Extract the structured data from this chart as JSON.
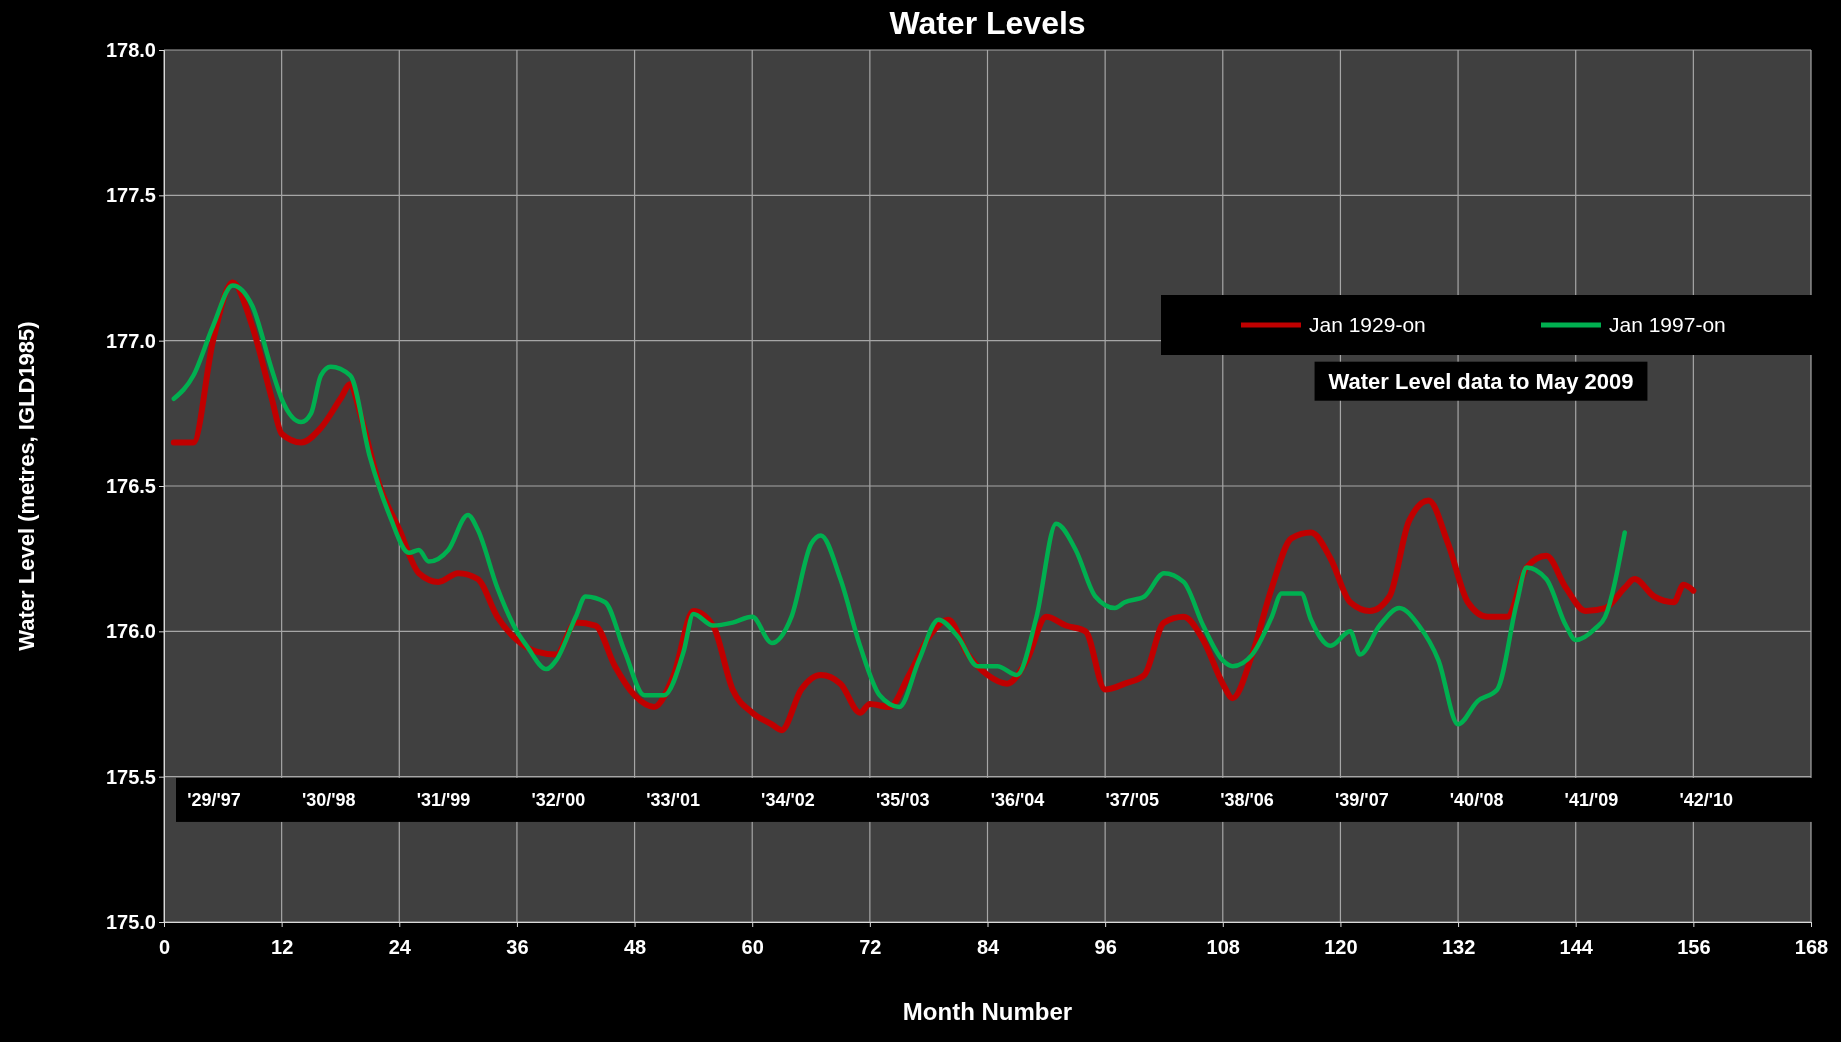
{
  "chart_data": {
    "type": "line",
    "title": "Water Levels",
    "xlabel": "Month Number",
    "ylabel": "Water Level (metres, IGLD1985)",
    "xlim": [
      0,
      168
    ],
    "xticks": [
      0,
      12,
      24,
      36,
      48,
      60,
      72,
      84,
      96,
      108,
      120,
      132,
      144,
      156,
      168
    ],
    "ylim": [
      175,
      178
    ],
    "yticks": [
      {
        "value": 175,
        "label": "175.0"
      },
      {
        "value": 175.5,
        "label": "175.5"
      },
      {
        "value": 176,
        "label": "176.0"
      },
      {
        "value": 176.5,
        "label": "176.5"
      },
      {
        "value": 177,
        "label": "177.0"
      },
      {
        "value": 177.5,
        "label": "177.5"
      },
      {
        "value": 178,
        "label": "178.0"
      }
    ],
    "grid": true,
    "legend": "top right",
    "line_style": "solid",
    "marker": "none",
    "series": [
      {
        "name": "Jan 1929-on",
        "color": "#c00000",
        "x": [
          1,
          3,
          5,
          7,
          9,
          11,
          12,
          14,
          16,
          18,
          19,
          20,
          22,
          24,
          26,
          28,
          30,
          32,
          34,
          36,
          38,
          40,
          42,
          44,
          46,
          48,
          50,
          52,
          54,
          56,
          58,
          60,
          62,
          63,
          65,
          67,
          69,
          71,
          72,
          74,
          76,
          78,
          80,
          82,
          84,
          86,
          88,
          90,
          92,
          94,
          96,
          98,
          100,
          102,
          104,
          106,
          108,
          109,
          111,
          113,
          115,
          117,
          119,
          121,
          123,
          125,
          127,
          129,
          131,
          133,
          135,
          137,
          139,
          141,
          143,
          145,
          147,
          149,
          150,
          152,
          154,
          155,
          156
        ],
        "values": [
          176.65,
          176.65,
          177.0,
          177.2,
          177.05,
          176.8,
          176.68,
          176.65,
          176.7,
          176.8,
          176.85,
          176.75,
          176.5,
          176.35,
          176.2,
          176.17,
          176.2,
          176.18,
          176.05,
          175.97,
          175.93,
          175.92,
          176.03,
          176.02,
          175.88,
          175.78,
          175.74,
          175.85,
          176.07,
          176.02,
          175.8,
          175.72,
          175.68,
          175.66,
          175.8,
          175.85,
          175.82,
          175.72,
          175.75,
          175.74,
          175.85,
          175.98,
          176.04,
          175.92,
          175.85,
          175.82,
          175.9,
          176.05,
          176.02,
          176.0,
          175.8,
          175.82,
          175.85,
          176.03,
          176.05,
          175.97,
          175.82,
          175.77,
          175.92,
          176.15,
          176.32,
          176.34,
          176.25,
          176.1,
          176.07,
          176.12,
          176.38,
          176.45,
          176.3,
          176.1,
          176.05,
          176.05,
          176.22,
          176.26,
          176.15,
          176.07,
          176.08,
          176.15,
          176.18,
          176.12,
          176.1,
          176.16,
          176.14
        ]
      },
      {
        "name": "Jan 1997-on",
        "color": "#00b050",
        "x": [
          1,
          3,
          5,
          7,
          9,
          11,
          12,
          14,
          15,
          16,
          17,
          19,
          21,
          23,
          25,
          26,
          27,
          29,
          31,
          32,
          34,
          36,
          37,
          39,
          40,
          42,
          43,
          45,
          47,
          49,
          51,
          53,
          54,
          56,
          58,
          60,
          62,
          64,
          66,
          67,
          69,
          71,
          73,
          75,
          77,
          79,
          81,
          83,
          85,
          87,
          89,
          91,
          93,
          95,
          97,
          98,
          100,
          102,
          104,
          106,
          108,
          109,
          111,
          113,
          114,
          116,
          117,
          119,
          121,
          122,
          124,
          126,
          128,
          130,
          132,
          134,
          136,
          138,
          139,
          141,
          143,
          144,
          146,
          147,
          149
        ],
        "values": [
          176.8,
          176.88,
          177.05,
          177.19,
          177.12,
          176.9,
          176.8,
          176.72,
          176.75,
          176.88,
          176.91,
          176.88,
          176.6,
          176.4,
          176.27,
          176.28,
          176.24,
          176.28,
          176.4,
          176.35,
          176.15,
          176.0,
          175.95,
          175.87,
          175.9,
          176.05,
          176.12,
          176.1,
          175.93,
          175.78,
          175.78,
          175.93,
          176.06,
          176.02,
          176.03,
          176.05,
          175.96,
          176.05,
          176.3,
          176.33,
          176.18,
          175.95,
          175.78,
          175.74,
          175.9,
          176.04,
          175.98,
          175.88,
          175.88,
          175.85,
          176.05,
          176.37,
          176.28,
          176.12,
          176.08,
          176.1,
          176.12,
          176.2,
          176.17,
          176.02,
          175.9,
          175.88,
          175.92,
          176.05,
          176.13,
          176.13,
          176.04,
          175.95,
          176.0,
          175.92,
          176.02,
          176.08,
          176.02,
          175.9,
          175.68,
          175.76,
          175.8,
          176.1,
          176.22,
          176.18,
          176.02,
          175.97,
          176.01,
          176.05,
          176.34
        ]
      }
    ],
    "annotations": [
      "'29/'97",
      "'30/'98",
      "'31/'99",
      "'32/'00",
      "'33/'01",
      "'34/'02",
      "'35/'03",
      "'36/'04",
      "'37/'05",
      "'38/'06",
      "'39/'07",
      "'40/'08",
      "'41/'09",
      "'42/'10",
      "Water Level data to May 2009"
    ]
  }
}
